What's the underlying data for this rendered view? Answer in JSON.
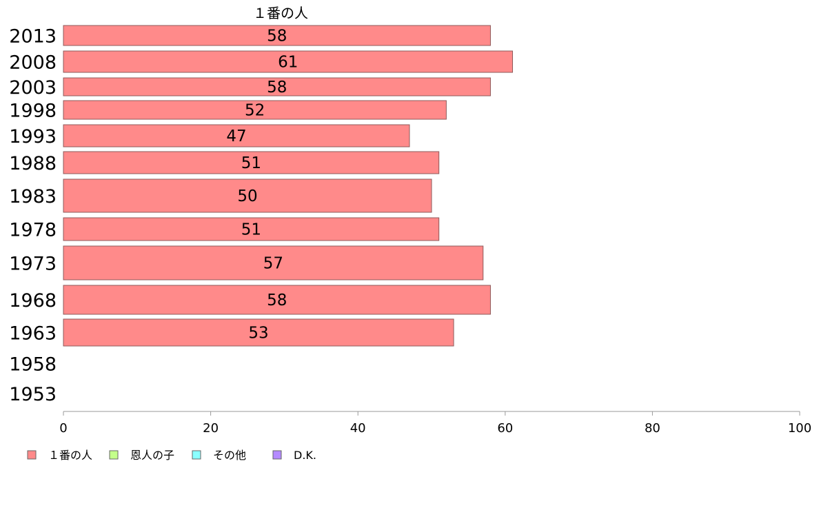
{
  "chart_data": {
    "type": "bar",
    "orientation": "horizontal",
    "stacked": true,
    "title": "",
    "xlabel": "",
    "ylabel": "",
    "xlim": [
      0,
      100
    ],
    "x_ticks": [
      0,
      20,
      40,
      60,
      80,
      100
    ],
    "grid": false,
    "legend_position": "bottom-left",
    "series_title": "１番の人",
    "categories": [
      "2013",
      "2008",
      "2003",
      "1998",
      "1993",
      "1988",
      "1983",
      "1978",
      "1973",
      "1968",
      "1963",
      "1958",
      "1953"
    ],
    "series": [
      {
        "name": "１番の人",
        "color": "#ff8a8a",
        "values": [
          58,
          61,
          58,
          52,
          47,
          51,
          50,
          51,
          57,
          58,
          53,
          null,
          null
        ]
      },
      {
        "name": "恩人の子",
        "color": "#c4ff8a",
        "values": [
          null,
          null,
          null,
          null,
          null,
          null,
          null,
          null,
          null,
          null,
          null,
          null,
          null
        ]
      },
      {
        "name": "その他",
        "color": "#8affff",
        "values": [
          null,
          null,
          null,
          null,
          null,
          null,
          null,
          null,
          null,
          null,
          null,
          null,
          null
        ]
      },
      {
        "name": "D.K.",
        "color": "#b48aff",
        "values": [
          null,
          null,
          null,
          null,
          null,
          null,
          null,
          null,
          null,
          null,
          null,
          null,
          null
        ]
      }
    ]
  }
}
